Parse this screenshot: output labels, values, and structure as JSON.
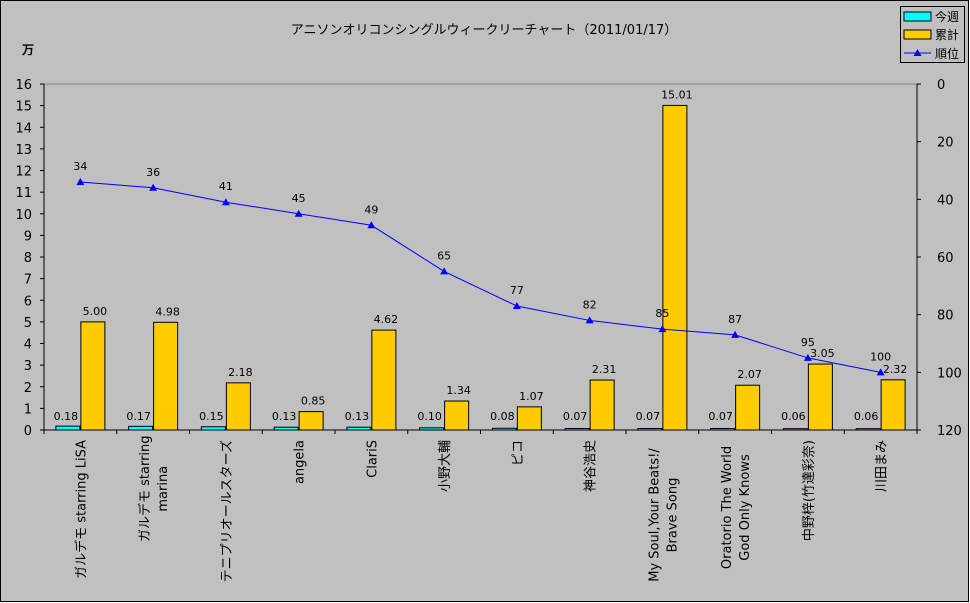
{
  "chart_data": {
    "type": "bar+line",
    "title": "アニソンオリコンシングルウィークリーチャート（2011/01/17）",
    "left_axis_unit": "万",
    "left_ylim": [
      0,
      16
    ],
    "left_ticks": [
      0,
      1,
      2,
      3,
      4,
      5,
      6,
      7,
      8,
      9,
      10,
      11,
      12,
      13,
      14,
      15,
      16
    ],
    "right_ylim": [
      0,
      120
    ],
    "right_axis_reversed": true,
    "right_ticks": [
      0,
      20,
      40,
      60,
      80,
      100,
      120
    ],
    "grid": false,
    "legend_position": "top-right",
    "categories": [
      "ガルデモ starring LiSA",
      "ガルデモ starring\nmarina",
      "テニプリオールスターズ",
      "angela",
      "ClariS",
      "小野大輔",
      "ピコ",
      "神谷浩史",
      "My Soul,Your Beats!/\nBrave Song",
      "Oratorio The World\nGod Only Knows",
      "中野梓(竹達彩奈)",
      "川田まみ"
    ],
    "series": [
      {
        "name": "今週",
        "type": "bar",
        "axis": "left",
        "color": "#00FFFF",
        "values": [
          0.18,
          0.17,
          0.15,
          0.13,
          0.13,
          0.1,
          0.08,
          0.07,
          0.07,
          0.07,
          0.06,
          0.06
        ],
        "labels": [
          "0.18",
          "0.17",
          "0.15",
          "0.13",
          "0.13",
          "0.10",
          "0.08",
          "0.07",
          "0.07",
          "0.07",
          "0.06",
          "0.06"
        ]
      },
      {
        "name": "累計",
        "type": "bar",
        "axis": "left",
        "color": "#FFCC00",
        "values": [
          5.0,
          4.98,
          2.18,
          0.85,
          4.62,
          1.34,
          1.07,
          2.31,
          15.01,
          2.07,
          3.05,
          2.32
        ],
        "labels": [
          "5.00",
          "4.98",
          "2.18",
          "0.85",
          "4.62",
          "1.34",
          "1.07",
          "2.31",
          "15.01",
          "2.07",
          "3.05",
          "2.32"
        ]
      },
      {
        "name": "順位",
        "type": "line",
        "axis": "right",
        "color": "#0000FF",
        "values": [
          34,
          36,
          41,
          45,
          49,
          65,
          77,
          82,
          85,
          87,
          95,
          100
        ],
        "labels": [
          "34",
          "36",
          "41",
          "45",
          "49",
          "65",
          "77",
          "82",
          "85",
          "87",
          "95",
          "100"
        ]
      }
    ]
  }
}
